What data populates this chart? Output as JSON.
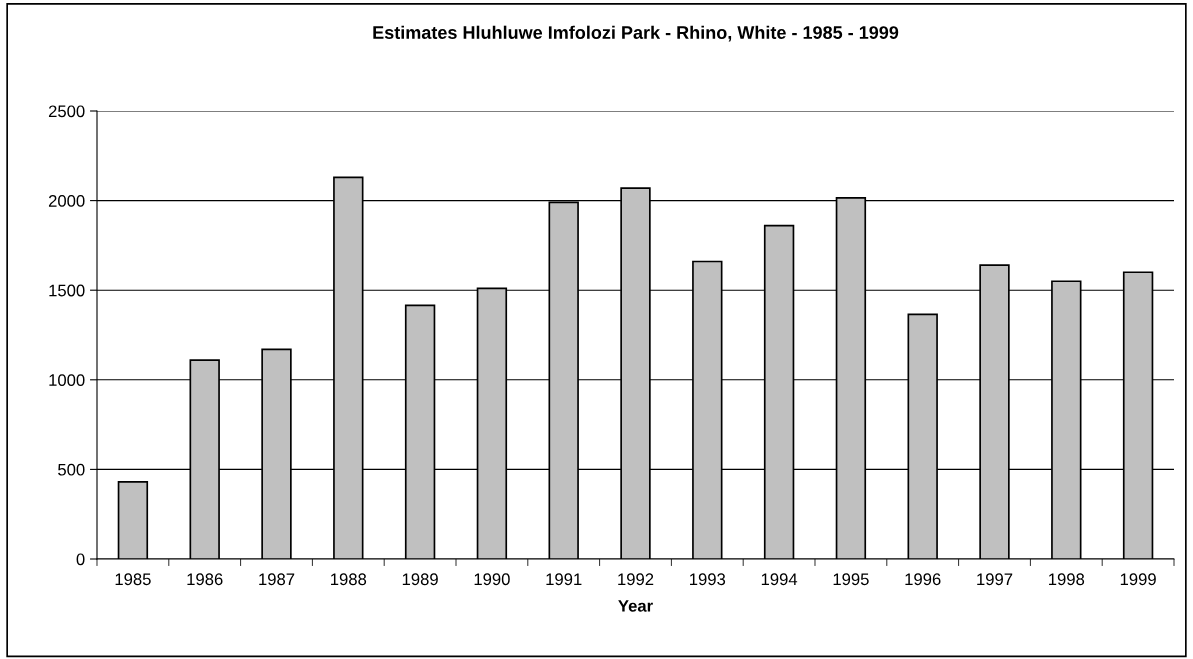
{
  "chart_data": {
    "type": "bar",
    "title": "Estimates Hluhluwe Imfolozi Park - Rhino, White - 1985 - 1999",
    "xlabel": "Year",
    "categories": [
      "1985",
      "1986",
      "1987",
      "1988",
      "1989",
      "1990",
      "1991",
      "1992",
      "1993",
      "1994",
      "1995",
      "1996",
      "1997",
      "1998",
      "1999"
    ],
    "values": [
      430,
      1110,
      1170,
      2130,
      1415,
      1510,
      1990,
      2070,
      1660,
      1860,
      2015,
      1365,
      1640,
      1550,
      1600
    ],
    "color": "#c0c0c0",
    "ylim": [
      0,
      2500
    ],
    "yticks": [
      0,
      500,
      1000,
      1500,
      2000,
      2500
    ],
    "grid": "y",
    "legend": false
  }
}
